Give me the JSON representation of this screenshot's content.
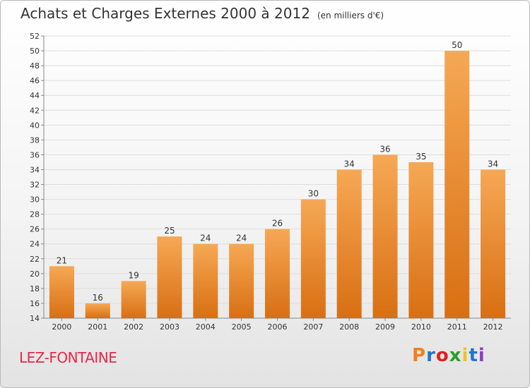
{
  "header": {
    "title": "Achats et Charges Externes 2000 à 2012",
    "subtitle": "(en milliers d'€)"
  },
  "footer": {
    "commune": "LEZ-FONTAINE",
    "logo_text": "Proxiti",
    "logo_colors": [
      "#f0801e",
      "#1f78c8",
      "#e02020",
      "#2aa02a",
      "#f0c020",
      "#1f78c8",
      "#8a3fc0"
    ]
  },
  "colors": {
    "bar_light": "#f6a855",
    "bar_dark": "#d86f12",
    "grid": "#dddddd",
    "axis": "#888888"
  },
  "chart_data": {
    "type": "bar",
    "title": "Achats et Charges Externes 2000 à 2012",
    "subtitle": "(en milliers d'€)",
    "categories": [
      "2000",
      "2001",
      "2002",
      "2003",
      "2004",
      "2005",
      "2006",
      "2007",
      "2008",
      "2009",
      "2010",
      "2011",
      "2012"
    ],
    "values": [
      21,
      16,
      19,
      25,
      24,
      24,
      26,
      30,
      34,
      36,
      35,
      50,
      34
    ],
    "ylim": [
      14,
      52
    ],
    "yticks": [
      14,
      16,
      18,
      20,
      22,
      24,
      26,
      28,
      30,
      32,
      34,
      36,
      38,
      40,
      42,
      44,
      46,
      48,
      50,
      52
    ],
    "grid": true
  }
}
